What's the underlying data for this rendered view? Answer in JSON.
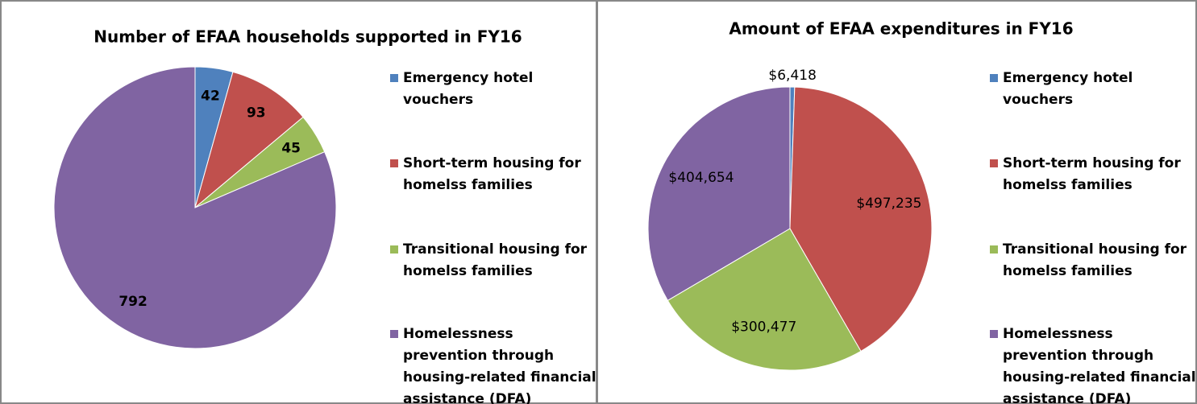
{
  "chart_data": [
    {
      "type": "pie",
      "title": "Number of EFAA households supported in FY16",
      "categories": [
        "Emergency hotel vouchers",
        "Short-term housing for homelss families",
        "Transitional housing for homelss families",
        "Homelessness prevention through housing-related financial assistance (DFA)"
      ],
      "values": [
        42,
        93,
        45,
        792
      ],
      "colors": [
        "#4f81bd",
        "#c0504d",
        "#9bbb59",
        "#8064a2"
      ],
      "legend": "right",
      "label_bold": true
    },
    {
      "type": "pie",
      "title": "Amount of EFAA expenditures in FY16",
      "categories": [
        "Emergency hotel vouchers",
        "Short-term housing for homelss families",
        "Transitional housing for homelss families",
        "Homelessness prevention through housing-related financial assistance (DFA)"
      ],
      "values": [
        6418,
        497235,
        300477,
        404654
      ],
      "value_labels": [
        "$6,418",
        "$497,235",
        "$300,477",
        "$404,654"
      ],
      "colors": [
        "#4f81bd",
        "#c0504d",
        "#9bbb59",
        "#8064a2"
      ],
      "legend": "right",
      "label_bold": false
    }
  ]
}
